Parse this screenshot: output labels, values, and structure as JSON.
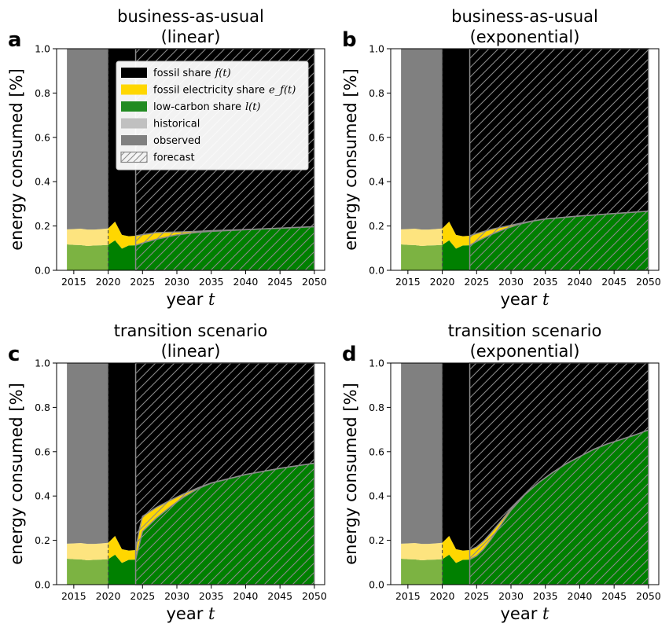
{
  "figure": {
    "panels": [
      "a",
      "b",
      "c",
      "d"
    ]
  },
  "legend": {
    "items": [
      {
        "label": "fossil share",
        "math": "f(t)",
        "color": "#000000",
        "kind": "solid"
      },
      {
        "label": "fossil electricity share",
        "math": "e_f(t)",
        "color": "#FFD700",
        "kind": "solid"
      },
      {
        "label": "low-carbon share",
        "math": "l(t)",
        "color": "#228B22",
        "kind": "solid"
      },
      {
        "label": "historical",
        "math": "",
        "color": "#c0c0c0",
        "kind": "solid"
      },
      {
        "label": "observed",
        "math": "",
        "color": "#808080",
        "kind": "solid"
      },
      {
        "label": "forecast",
        "math": "",
        "color": "#ffffff",
        "kind": "hatch"
      }
    ]
  },
  "chart_data": [
    {
      "panel_letter": "a",
      "type": "area",
      "title": "business-as-usual",
      "subtitle": "(linear)",
      "xlabel": "year",
      "xlabel_math": "t",
      "ylabel": "energy consumed [%]",
      "xlim": [
        2012.5,
        2051.5
      ],
      "ylim": [
        0,
        1
      ],
      "xticks": [
        2015,
        2020,
        2025,
        2030,
        2035,
        2040,
        2045,
        2050
      ],
      "yticks": [
        0.0,
        0.2,
        0.4,
        0.6,
        0.8,
        1.0
      ],
      "periods": {
        "historical": [
          2014,
          2020
        ],
        "observed": [
          2020,
          2024
        ],
        "forecast": [
          2024,
          2050
        ]
      },
      "series": [
        {
          "name": "low-carbon share",
          "x": [
            2014,
            2015,
            2016,
            2017,
            2018,
            2019,
            2020,
            2021,
            2022,
            2023,
            2024,
            2025,
            2027,
            2030,
            2033,
            2035,
            2040,
            2045,
            2050
          ],
          "values": [
            0.117,
            0.115,
            0.114,
            0.11,
            0.112,
            0.113,
            0.115,
            0.135,
            0.098,
            0.112,
            0.113,
            0.123,
            0.14,
            0.16,
            0.171,
            0.176,
            0.183,
            0.19,
            0.197
          ]
        },
        {
          "name": "fossil electricity share",
          "x": [
            2014,
            2015,
            2016,
            2017,
            2018,
            2019,
            2020,
            2021,
            2022,
            2023,
            2024,
            2025,
            2027,
            2030,
            2033,
            2035,
            2040,
            2045,
            2050
          ],
          "values": [
            0.068,
            0.071,
            0.074,
            0.074,
            0.072,
            0.073,
            0.074,
            0.085,
            0.062,
            0.042,
            0.043,
            0.038,
            0.03,
            0.013,
            0.005,
            0.003,
            0.001,
            0.0,
            0.0
          ]
        },
        {
          "name": "fossil share",
          "note": "remainder up to 1.0"
        }
      ]
    },
    {
      "panel_letter": "b",
      "type": "area",
      "title": "business-as-usual",
      "subtitle": "(exponential)",
      "xlabel": "year",
      "xlabel_math": "t",
      "ylabel": "energy consumed [%]",
      "xlim": [
        2012.5,
        2051.5
      ],
      "ylim": [
        0,
        1
      ],
      "xticks": [
        2015,
        2020,
        2025,
        2030,
        2035,
        2040,
        2045,
        2050
      ],
      "yticks": [
        0.0,
        0.2,
        0.4,
        0.6,
        0.8,
        1.0
      ],
      "periods": {
        "historical": [
          2014,
          2020
        ],
        "observed": [
          2020,
          2024
        ],
        "forecast": [
          2024,
          2050
        ]
      },
      "series": [
        {
          "name": "low-carbon share",
          "x": [
            2014,
            2015,
            2016,
            2017,
            2018,
            2019,
            2020,
            2021,
            2022,
            2023,
            2024,
            2025,
            2027,
            2029,
            2031,
            2033,
            2035,
            2040,
            2045,
            2050
          ],
          "values": [
            0.117,
            0.115,
            0.114,
            0.11,
            0.112,
            0.113,
            0.115,
            0.135,
            0.098,
            0.112,
            0.113,
            0.13,
            0.16,
            0.185,
            0.206,
            0.221,
            0.232,
            0.245,
            0.256,
            0.267
          ]
        },
        {
          "name": "fossil electricity share",
          "x": [
            2014,
            2015,
            2016,
            2017,
            2018,
            2019,
            2020,
            2021,
            2022,
            2023,
            2024,
            2025,
            2027,
            2029,
            2031,
            2033,
            2035,
            2040,
            2045,
            2050
          ],
          "values": [
            0.068,
            0.071,
            0.074,
            0.074,
            0.072,
            0.073,
            0.074,
            0.085,
            0.062,
            0.042,
            0.043,
            0.036,
            0.024,
            0.012,
            0.004,
            0.001,
            0.0,
            0.0,
            0.0,
            0.0
          ]
        },
        {
          "name": "fossil share",
          "note": "remainder up to 1.0"
        }
      ]
    },
    {
      "panel_letter": "c",
      "type": "area",
      "title": "transition scenario",
      "subtitle": "(linear)",
      "xlabel": "year",
      "xlabel_math": "t",
      "ylabel": "energy consumed [%]",
      "xlim": [
        2012.5,
        2051.5
      ],
      "ylim": [
        0,
        1
      ],
      "xticks": [
        2015,
        2020,
        2025,
        2030,
        2035,
        2040,
        2045,
        2050
      ],
      "yticks": [
        0.0,
        0.2,
        0.4,
        0.6,
        0.8,
        1.0
      ],
      "periods": {
        "historical": [
          2014,
          2020
        ],
        "observed": [
          2020,
          2024
        ],
        "forecast": [
          2024,
          2050
        ]
      },
      "series": [
        {
          "name": "low-carbon share",
          "x": [
            2014,
            2015,
            2016,
            2017,
            2018,
            2019,
            2020,
            2021,
            2022,
            2023,
            2024,
            2024.5,
            2025,
            2027,
            2029,
            2031,
            2033,
            2035,
            2040,
            2045,
            2050
          ],
          "values": [
            0.117,
            0.115,
            0.114,
            0.11,
            0.112,
            0.113,
            0.115,
            0.135,
            0.098,
            0.112,
            0.113,
            0.175,
            0.24,
            0.3,
            0.35,
            0.395,
            0.432,
            0.458,
            0.497,
            0.525,
            0.548
          ]
        },
        {
          "name": "fossil electricity share",
          "x": [
            2014,
            2015,
            2016,
            2017,
            2018,
            2019,
            2020,
            2021,
            2022,
            2023,
            2024,
            2024.5,
            2025,
            2027,
            2029,
            2031,
            2033,
            2035,
            2040,
            2045,
            2050
          ],
          "values": [
            0.068,
            0.071,
            0.074,
            0.074,
            0.072,
            0.073,
            0.074,
            0.085,
            0.062,
            0.042,
            0.043,
            0.07,
            0.068,
            0.048,
            0.03,
            0.015,
            0.004,
            0.001,
            0.0,
            0.0,
            0.0
          ]
        },
        {
          "name": "fossil share",
          "note": "remainder up to 1.0"
        }
      ]
    },
    {
      "panel_letter": "d",
      "type": "area",
      "title": "transition scenario",
      "subtitle": "(exponential)",
      "xlabel": "year",
      "xlabel_math": "t",
      "ylabel": "energy consumed [%]",
      "xlim": [
        2012.5,
        2051.5
      ],
      "ylim": [
        0,
        1
      ],
      "xticks": [
        2015,
        2020,
        2025,
        2030,
        2035,
        2040,
        2045,
        2050
      ],
      "yticks": [
        0.0,
        0.2,
        0.4,
        0.6,
        0.8,
        1.0
      ],
      "periods": {
        "historical": [
          2014,
          2020
        ],
        "observed": [
          2020,
          2024
        ],
        "forecast": [
          2024,
          2050
        ]
      },
      "series": [
        {
          "name": "low-carbon share",
          "x": [
            2014,
            2015,
            2016,
            2017,
            2018,
            2019,
            2020,
            2021,
            2022,
            2023,
            2024,
            2025,
            2026,
            2027,
            2028,
            2029,
            2030,
            2032,
            2034,
            2036,
            2038,
            2040,
            2042,
            2044,
            2046,
            2048,
            2050
          ],
          "values": [
            0.117,
            0.115,
            0.114,
            0.11,
            0.112,
            0.113,
            0.115,
            0.135,
            0.098,
            0.112,
            0.113,
            0.13,
            0.16,
            0.2,
            0.245,
            0.29,
            0.335,
            0.405,
            0.46,
            0.505,
            0.545,
            0.578,
            0.61,
            0.635,
            0.655,
            0.675,
            0.698
          ]
        },
        {
          "name": "fossil electricity share",
          "x": [
            2014,
            2015,
            2016,
            2017,
            2018,
            2019,
            2020,
            2021,
            2022,
            2023,
            2024,
            2025,
            2026,
            2027,
            2028,
            2029,
            2030,
            2032,
            2034,
            2036,
            2038,
            2040,
            2042,
            2044,
            2046,
            2048,
            2050
          ],
          "values": [
            0.068,
            0.071,
            0.074,
            0.074,
            0.072,
            0.073,
            0.074,
            0.085,
            0.062,
            0.042,
            0.043,
            0.04,
            0.036,
            0.03,
            0.022,
            0.014,
            0.008,
            0.002,
            0.0,
            0.0,
            0.0,
            0.0,
            0.0,
            0.0,
            0.0,
            0.0,
            0.0
          ]
        },
        {
          "name": "fossil share",
          "note": "remainder up to 1.0"
        }
      ]
    }
  ]
}
